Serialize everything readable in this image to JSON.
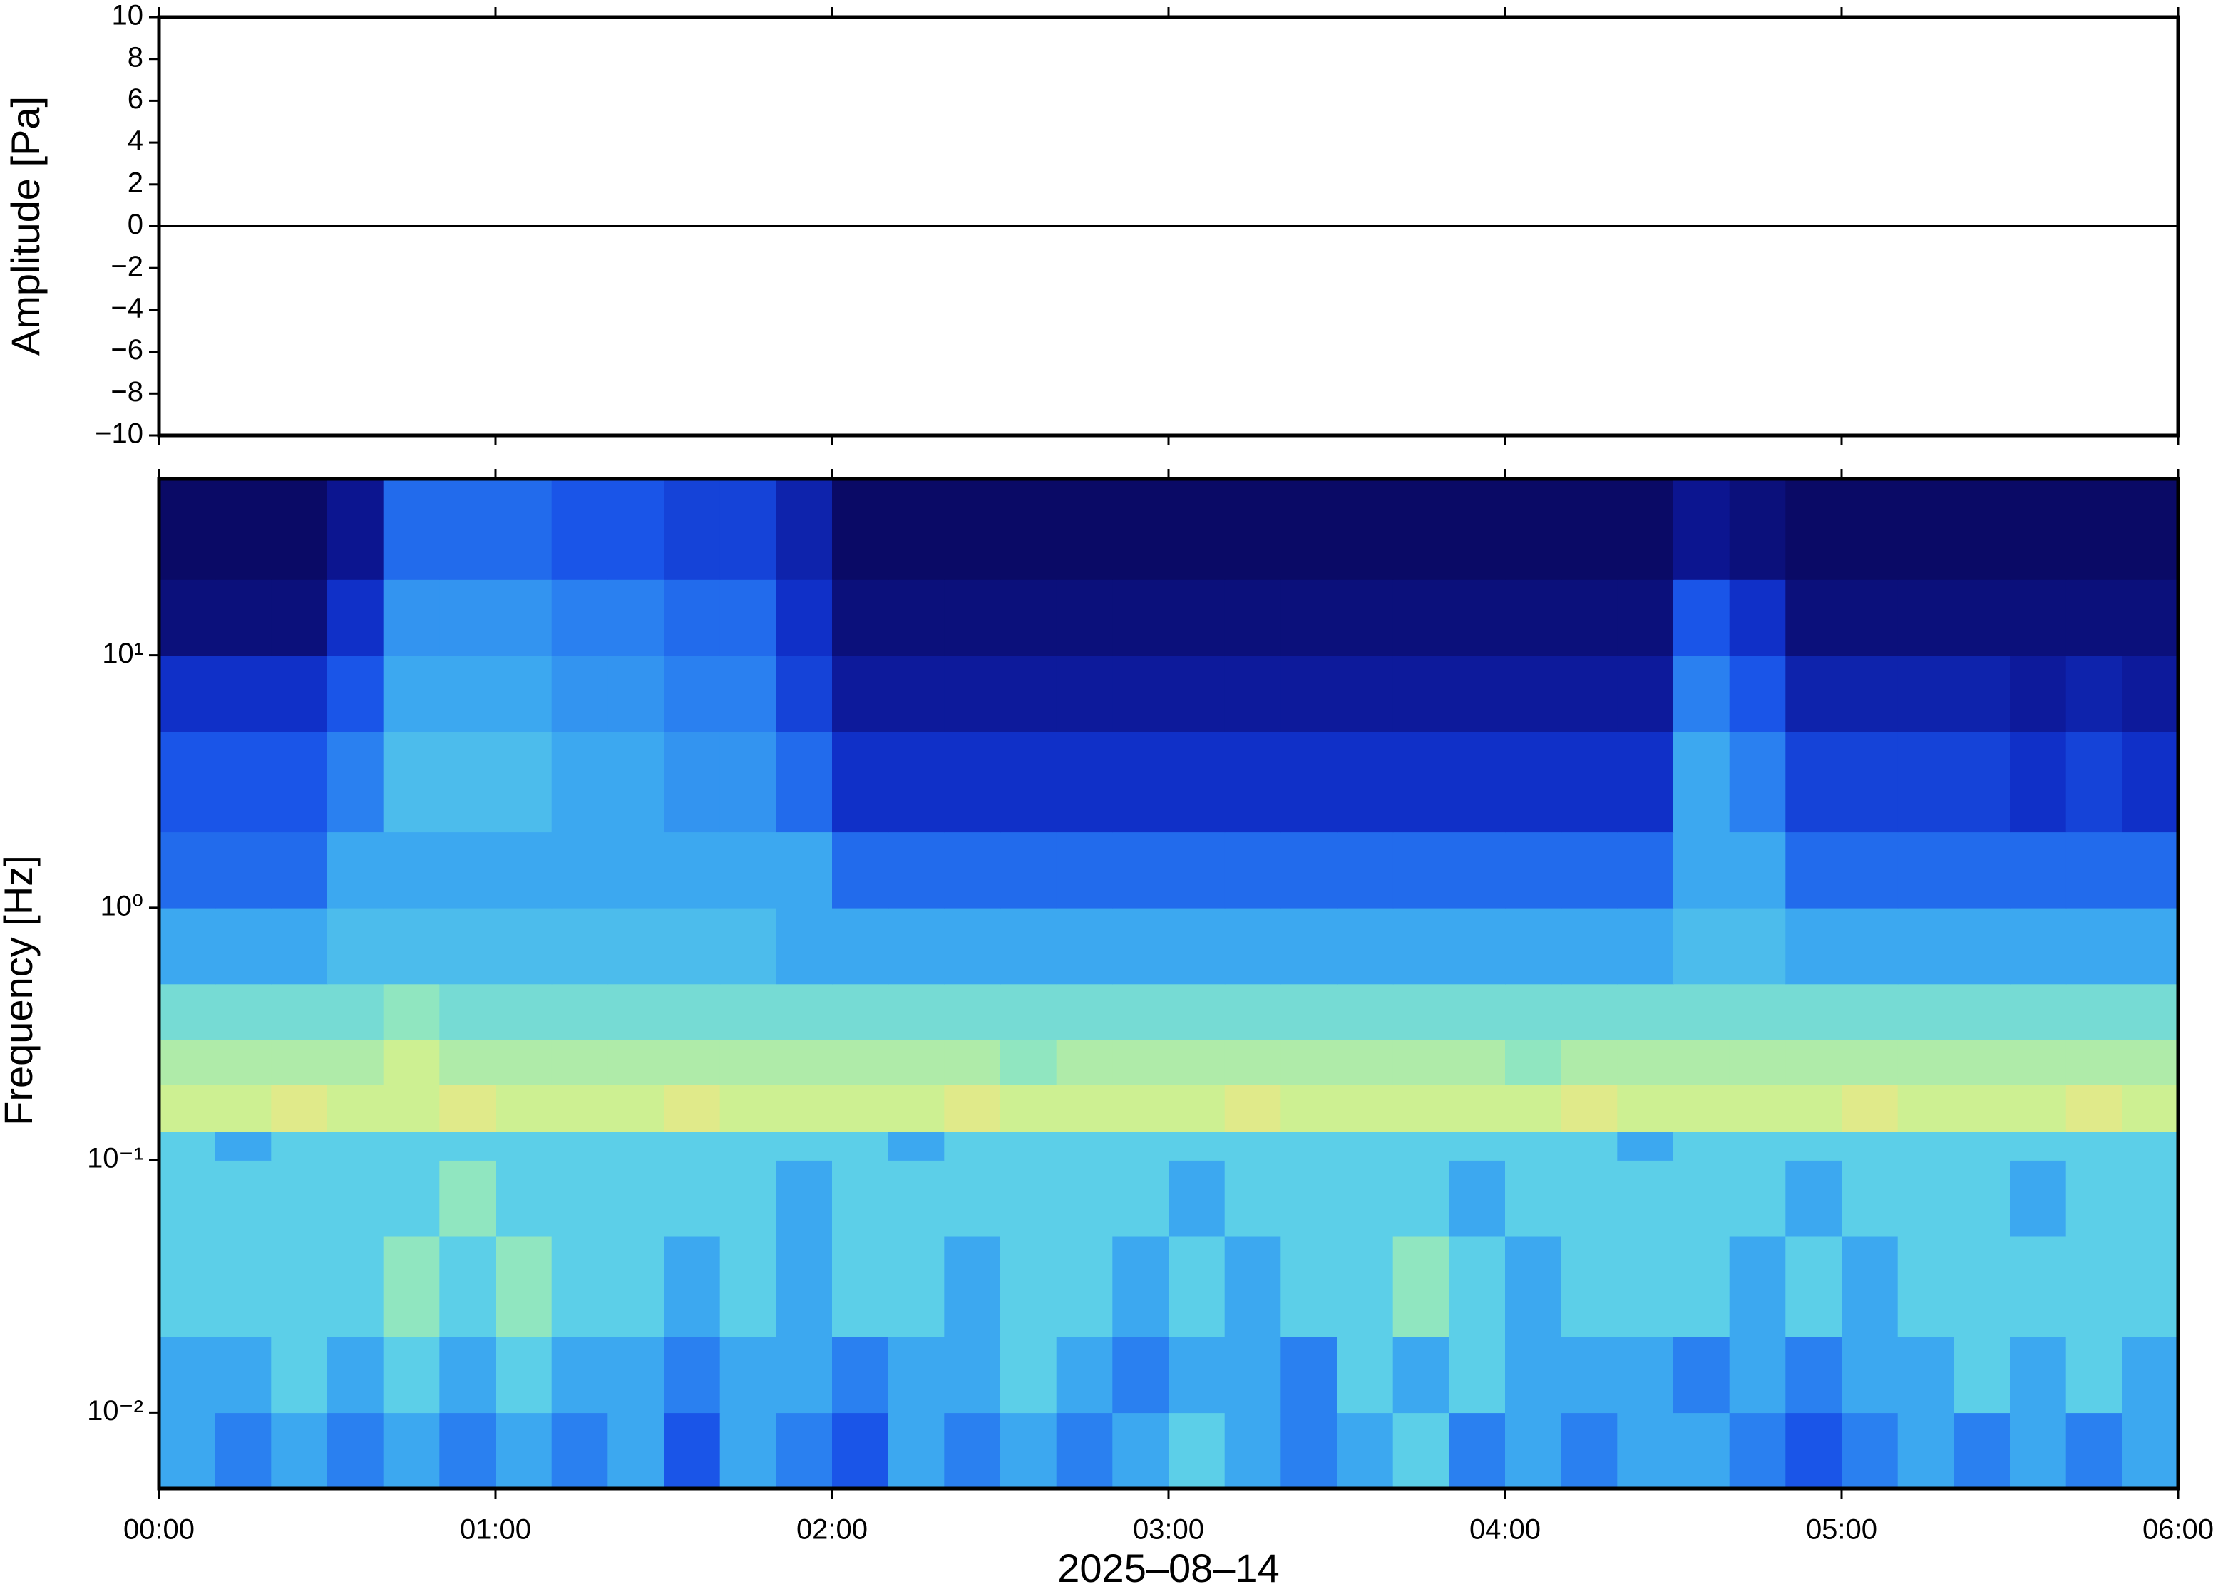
{
  "chart_data": [
    {
      "type": "line",
      "ylabel": "Amplitude [Pa]",
      "xlim": [
        0,
        6
      ],
      "xticks": [
        0,
        1,
        2,
        3,
        4,
        5,
        6
      ],
      "ylim": [
        -10,
        10
      ],
      "yticks": [
        {
          "value": -10,
          "label": "−10"
        },
        {
          "value": -8,
          "label": "−8"
        },
        {
          "value": -6,
          "label": "−6"
        },
        {
          "value": -4,
          "label": "−4"
        },
        {
          "value": -2,
          "label": "−2"
        },
        0,
        2,
        4,
        6,
        8,
        10
      ],
      "series": [
        {
          "color": "#000000",
          "x": [
            0,
            0.5,
            1,
            1.5,
            2,
            2.5,
            3,
            3.5,
            4,
            4.5,
            5,
            5.5,
            6
          ],
          "values": [
            0,
            0,
            0,
            0,
            0,
            0,
            0,
            0,
            0,
            0,
            0,
            0,
            0
          ]
        }
      ]
    },
    {
      "type": "heatmap",
      "ylabel": "Frequency [Hz]",
      "xlabel": "2025–08–14",
      "xlim": [
        0,
        6
      ],
      "xticks": [
        {
          "value": 0,
          "label": "00:00"
        },
        {
          "value": 1,
          "label": "01:00"
        },
        {
          "value": 2,
          "label": "02:00"
        },
        {
          "value": 3,
          "label": "03:00"
        },
        {
          "value": 4,
          "label": "04:00"
        },
        {
          "value": 5,
          "label": "05:00"
        },
        {
          "value": 6,
          "label": "06:00"
        }
      ],
      "ylim": [
        0.005,
        50
      ],
      "ylog": true,
      "yticks": [
        {
          "value": 0.01,
          "label": "10⁻²"
        },
        {
          "value": 0.1,
          "label": "10⁻¹"
        },
        {
          "value": 1,
          "label": "10⁰"
        },
        {
          "value": 10,
          "label": "10¹"
        }
      ],
      "x_edges": [
        0,
        0.1667,
        0.3333,
        0.5,
        0.6667,
        0.8333,
        1,
        1.1667,
        1.3333,
        1.5,
        1.6667,
        1.8333,
        2,
        2.1667,
        2.3333,
        2.5,
        2.6667,
        2.8333,
        3,
        3.1667,
        3.3333,
        3.5,
        3.6667,
        3.8333,
        4,
        4.1667,
        4.3333,
        4.5,
        4.6667,
        4.8333,
        5,
        5.1667,
        5.3333,
        5.5,
        5.6667,
        5.8333,
        6
      ],
      "y_edges": [
        0.005,
        0.01,
        0.02,
        0.05,
        0.1,
        0.13,
        0.2,
        0.3,
        0.5,
        1,
        2,
        5,
        10,
        20,
        50
      ],
      "clim": [
        0,
        10
      ],
      "colormap": [
        "#0a0a66",
        "#0c1590",
        "#1030c8",
        "#1a55e8",
        "#2a80f0",
        "#3ca8f0",
        "#5ccfe8",
        "#90e6c0",
        "#cdf092",
        "#f2e482",
        "#f2a468"
      ],
      "levels": [
        [
          5,
          4,
          5,
          4,
          5,
          4,
          5,
          4,
          5,
          3,
          5,
          4,
          3,
          5,
          4,
          5,
          4,
          5,
          6,
          5,
          4,
          5,
          6,
          4,
          5,
          4,
          5,
          5,
          4,
          3,
          4,
          5,
          4,
          5,
          4,
          5
        ],
        [
          5,
          5,
          6,
          5,
          6,
          5,
          6,
          5,
          5,
          4,
          5,
          5,
          4,
          5,
          5,
          6,
          5,
          4,
          5,
          5,
          4,
          6,
          5,
          6,
          5,
          5,
          5,
          4,
          5,
          4,
          5,
          5,
          6,
          5,
          6,
          5
        ],
        [
          6,
          6,
          6,
          6,
          7,
          6,
          7,
          6,
          6,
          5,
          6,
          5,
          6,
          6,
          5,
          6,
          6,
          5,
          6,
          5,
          6,
          6,
          7,
          6,
          5,
          6,
          6,
          6,
          5,
          6,
          5,
          6,
          6,
          6,
          6,
          6
        ],
        [
          6,
          6,
          6,
          6,
          6,
          7,
          6,
          6,
          6,
          6,
          6,
          5,
          6,
          6,
          6,
          6,
          6,
          6,
          5,
          6,
          6,
          6,
          6,
          5,
          6,
          6,
          6,
          6,
          6,
          5,
          6,
          6,
          6,
          5,
          6,
          6
        ],
        [
          6,
          5,
          6,
          6,
          6,
          6,
          6,
          6,
          6,
          6,
          6,
          6,
          6,
          5,
          6,
          6,
          6,
          6,
          6,
          6,
          6,
          6,
          6,
          6,
          6,
          6,
          5,
          6,
          6,
          6,
          6,
          6,
          6,
          6,
          6,
          6
        ],
        [
          8,
          8,
          8.5,
          8,
          8,
          8.5,
          8,
          8,
          8,
          8.5,
          8,
          8,
          8,
          8,
          8.5,
          8,
          8,
          8,
          8,
          8.5,
          8,
          8,
          8,
          8,
          8,
          8.5,
          8,
          8,
          8,
          8,
          8.5,
          8,
          8,
          8,
          8.5,
          8
        ],
        [
          7.5,
          7.5,
          7.5,
          7.5,
          8,
          7.5,
          7.5,
          7.5,
          7.5,
          7.5,
          7.5,
          7.5,
          7.5,
          7.5,
          7.5,
          7,
          7.5,
          7.5,
          7.5,
          7.5,
          7.5,
          7.5,
          7.5,
          7.5,
          7,
          7.5,
          7.5,
          7.5,
          7.5,
          7.5,
          7.5,
          7.5,
          7.5,
          7.5,
          7.5,
          7.5
        ],
        [
          6.5,
          6.5,
          6.5,
          6.5,
          7,
          6.5,
          6.5,
          6.5,
          6.5,
          6.5,
          6.5,
          6.5,
          6.5,
          6.5,
          6.5,
          6.5,
          6.5,
          6.5,
          6.5,
          6.5,
          6.5,
          6.5,
          6.5,
          6.5,
          6.5,
          6.5,
          6.5,
          6.5,
          6.5,
          6.5,
          6.5,
          6.5,
          6.5,
          6.5,
          6.5,
          6.5
        ],
        [
          5,
          5,
          5,
          5.5,
          5.5,
          5.5,
          5.5,
          5.5,
          5.5,
          5.5,
          5.5,
          5,
          5,
          5,
          5,
          5,
          5,
          5,
          5,
          5,
          5,
          5,
          5,
          5,
          5,
          5,
          5,
          5.5,
          5.5,
          5,
          5,
          5,
          5,
          5,
          5,
          5
        ],
        [
          3.5,
          3.5,
          3.5,
          5,
          5,
          5,
          5,
          5,
          5,
          5,
          5,
          5,
          3.5,
          3.5,
          3.5,
          3.5,
          3.5,
          3.5,
          3.5,
          3.5,
          3.5,
          3.5,
          3.5,
          3.5,
          3.5,
          3.5,
          3.5,
          5,
          5,
          3.5,
          3.5,
          3.5,
          3.5,
          3.5,
          3.5,
          3.5
        ],
        [
          3,
          3,
          3,
          4,
          5.5,
          5.5,
          5.5,
          5,
          5,
          4.5,
          4.5,
          3.5,
          2,
          2,
          2,
          2,
          2,
          2,
          2,
          2,
          2,
          2,
          2,
          2,
          2,
          2,
          2,
          5,
          4,
          2.5,
          2.5,
          2.5,
          2.5,
          2,
          2.5,
          2
        ],
        [
          2,
          2,
          2,
          3,
          5,
          5,
          5,
          4.5,
          4.5,
          4,
          4,
          2.5,
          1.2,
          1.2,
          1.2,
          1.2,
          1.2,
          1.2,
          1.2,
          1.2,
          1.2,
          1.2,
          1.2,
          1.2,
          1.2,
          1.2,
          1.2,
          4,
          3,
          1.5,
          1.5,
          1.5,
          1.5,
          1.2,
          1.5,
          1.2
        ],
        [
          0.5,
          0.5,
          0.5,
          2,
          4.5,
          4.5,
          4.5,
          4,
          4,
          3.5,
          3.5,
          2,
          0.5,
          0.5,
          0.5,
          0.5,
          0.5,
          0.5,
          0.5,
          0.5,
          0.5,
          0.5,
          0.5,
          0.5,
          0.5,
          0.5,
          0.5,
          3,
          2,
          0.5,
          0.5,
          0.5,
          0.5,
          0.5,
          0.5,
          0.5
        ],
        [
          0,
          0,
          0,
          1,
          3.5,
          3.5,
          3.5,
          3,
          3,
          2.5,
          2.5,
          1.5,
          0,
          0,
          0,
          0,
          0,
          0,
          0,
          0,
          0,
          0,
          0,
          0,
          0,
          0,
          0,
          1,
          0.5,
          0,
          0,
          0,
          0,
          0,
          0,
          0
        ]
      ]
    }
  ]
}
